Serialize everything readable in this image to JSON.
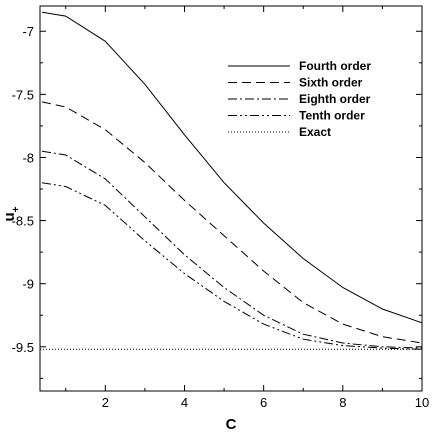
{
  "chart_data": {
    "type": "line",
    "xlabel": "C",
    "ylabel": "u",
    "ylabel_sub": "+",
    "xlim": [
      0.35,
      10
    ],
    "ylim": [
      -9.85,
      -6.8
    ],
    "xticks": [
      "2",
      "4",
      "6",
      "8",
      "10"
    ],
    "xtick_values": [
      2,
      4,
      6,
      8,
      10
    ],
    "yticks": [
      "-7",
      "-7.5",
      "-8",
      "-8.5",
      "-9",
      "-9.5"
    ],
    "ytick_values": [
      -7,
      -7.5,
      -8,
      -8.5,
      -9,
      -9.5
    ],
    "grid": false,
    "legend_position": "upper-right",
    "series": [
      {
        "name": "Fourth order",
        "style": "solid",
        "x": [
          0.4,
          1,
          2,
          3,
          4,
          5,
          6,
          7,
          8,
          9,
          10
        ],
        "y": [
          -6.85,
          -6.88,
          -7.08,
          -7.42,
          -7.82,
          -8.2,
          -8.52,
          -8.8,
          -9.03,
          -9.2,
          -9.31
        ]
      },
      {
        "name": "Sixth order",
        "style": "dashed",
        "x": [
          0.4,
          1,
          2,
          3,
          4,
          5,
          6,
          7,
          8,
          9,
          10
        ],
        "y": [
          -7.56,
          -7.6,
          -7.78,
          -8.04,
          -8.34,
          -8.62,
          -8.9,
          -9.15,
          -9.32,
          -9.42,
          -9.47
        ]
      },
      {
        "name": "Eighth order",
        "style": "dashdot",
        "x": [
          0.4,
          1,
          2,
          3,
          4,
          5,
          6,
          7,
          8,
          9,
          10
        ],
        "y": [
          -7.95,
          -7.98,
          -8.17,
          -8.47,
          -8.77,
          -9.03,
          -9.25,
          -9.4,
          -9.47,
          -9.5,
          -9.51
        ]
      },
      {
        "name": "Tenth order",
        "style": "dashdotdot",
        "x": [
          0.4,
          1,
          2,
          3,
          4,
          5,
          6,
          7,
          8,
          9,
          10
        ],
        "y": [
          -8.2,
          -8.23,
          -8.38,
          -8.66,
          -8.92,
          -9.14,
          -9.32,
          -9.44,
          -9.49,
          -9.51,
          -9.52
        ]
      },
      {
        "name": "Exact",
        "style": "dotted",
        "x": [
          0.35,
          10
        ],
        "y": [
          -9.52,
          -9.52
        ]
      }
    ]
  }
}
